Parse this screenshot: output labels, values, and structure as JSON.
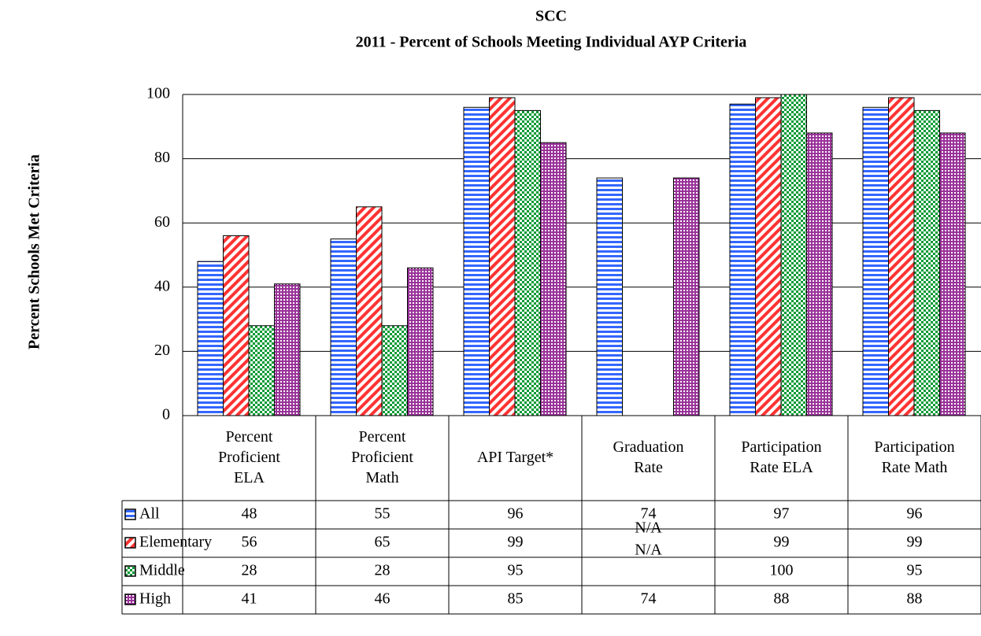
{
  "chart_data": {
    "type": "bar",
    "title": "SCC",
    "subtitle": "2011 - Percent of Schools Meeting Individual AYP Criteria",
    "y_axis_label": "Percent Schools Met Criteria",
    "categories": [
      "Percent\nProficient\nELA",
      "Percent\nProficient\nMath",
      "API Target*",
      "Graduation\nRate",
      "Participation\nRate ELA",
      "Participation\nRate Math"
    ],
    "series": [
      {
        "name": "All",
        "color": "#3366ff",
        "values": [
          48,
          55,
          96,
          74,
          97,
          96
        ]
      },
      {
        "name": "Elementary",
        "color": "#ff3333",
        "values": [
          56,
          65,
          99,
          null,
          99,
          99
        ],
        "value_labels": [
          "56",
          "65",
          "99",
          "N/A",
          "99",
          "99"
        ]
      },
      {
        "name": "Middle",
        "color": "#009933",
        "values": [
          28,
          28,
          95,
          null,
          100,
          95
        ],
        "value_labels": [
          "28",
          "28",
          "95",
          "N/A",
          "100",
          "95"
        ]
      },
      {
        "name": "High",
        "color": "#993399",
        "values": [
          41,
          46,
          85,
          74,
          88,
          88
        ]
      }
    ],
    "ylim": [
      0,
      100
    ],
    "yticks": [
      0,
      20,
      40,
      60,
      80,
      100
    ],
    "grid": true,
    "legend": "table"
  }
}
